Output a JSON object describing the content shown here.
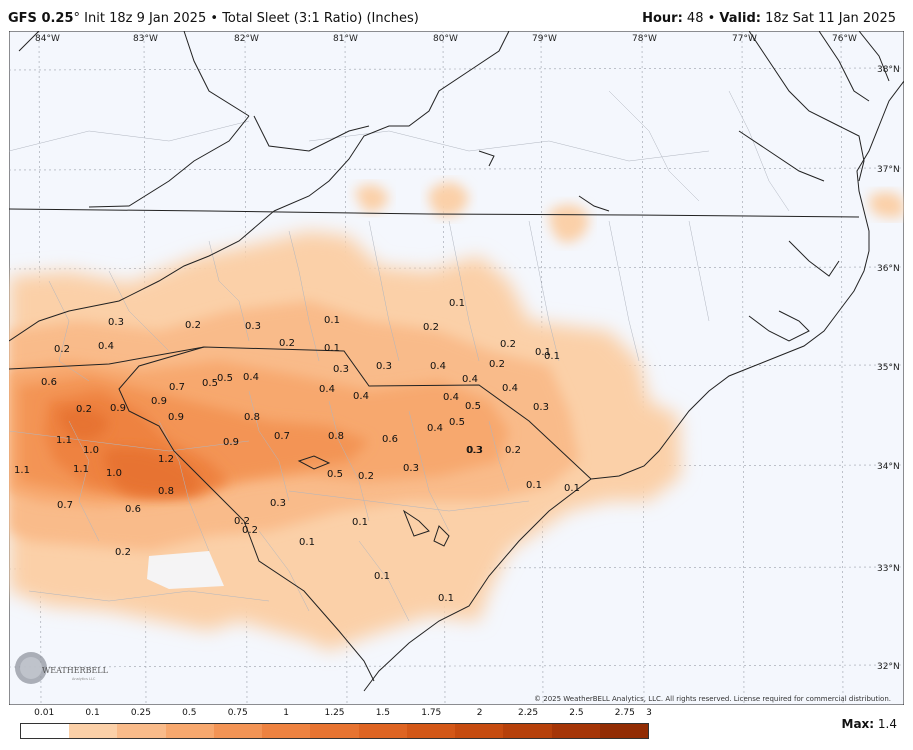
{
  "header": {
    "model": "GFS 0.25",
    "degree": "°",
    "init": "Init 18z 9 Jan 2025",
    "sep": "•",
    "product": "Total Sleet (3:1 Ratio) (Inches)",
    "hour_label": "Hour:",
    "hour": "48",
    "valid_label": "Valid:",
    "valid": "18z Sat 11 Jan 2025"
  },
  "map": {
    "lon_labels": [
      "84°W",
      "83°W",
      "82°W",
      "81°W",
      "80°W",
      "79°W",
      "78°W",
      "77°W",
      "76°W"
    ],
    "lat_labels": [
      "38°N",
      "37°N",
      "36°N",
      "35°N",
      "34°N",
      "33°N",
      "32°N"
    ],
    "values": [
      "0.3",
      "0.2",
      "0.3",
      "0.1",
      "0.2",
      "0.1",
      "0.2",
      "0.2",
      "0.4",
      "0.2",
      "0.1",
      "0.2",
      "0.1",
      "0.1",
      "0.6",
      "0.7",
      "0.5",
      "0.5",
      "0.4",
      "0.3",
      "0.3",
      "0.4",
      "0.4",
      "0.2",
      "0.9",
      "0.9",
      "0.9",
      "0.4",
      "0.4",
      "0.4",
      "0.4",
      "0.3",
      "0.5",
      "0.3",
      "1.1",
      "1.0",
      "0.9",
      "0.8",
      "0.7",
      "0.8",
      "0.6",
      "0.4",
      "0.5",
      "1.1",
      "1.1",
      "1.0",
      "1.2",
      "0.5",
      "0.2",
      "0.3",
      "0.3",
      "0.2",
      "0.8",
      "0.1",
      "0.1",
      "0.7",
      "0.6",
      "0.3",
      "0.2",
      "0.2",
      "0.1",
      "0.1",
      "0.2",
      "0.1",
      "0.1"
    ],
    "copyright": "© 2025 WeatherBELL Analytics, LLC. All rights reserved. License required for commercial distribution.",
    "logo_text": "WEATHERBELL",
    "logo_sub": "Analytics LLC"
  },
  "legend": {
    "ticks": [
      "0.01",
      "0.1",
      "0.25",
      "0.5",
      "0.75",
      "1",
      "1.25",
      "1.5",
      "1.75",
      "2",
      "2.25",
      "2.5",
      "2.75",
      "3"
    ],
    "colors": [
      "#ffffff",
      "#fbd0a8",
      "#f9bb8a",
      "#f7a86e",
      "#f39455",
      "#ee8240",
      "#e77330",
      "#de6422",
      "#d35717",
      "#c64b0f",
      "#b6400a",
      "#a53507",
      "#922c04"
    ],
    "max_label": "Max:",
    "max_value": "1.4"
  }
}
